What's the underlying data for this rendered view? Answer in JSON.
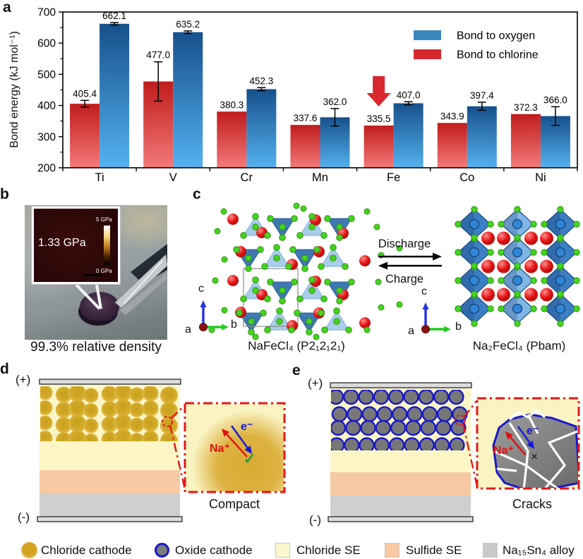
{
  "figure": {
    "panels": {
      "a": "a",
      "b": "b",
      "c": "c",
      "d": "d",
      "e": "e"
    }
  },
  "chart_data": {
    "type": "bar",
    "title": "",
    "categories": [
      "Ti",
      "V",
      "Cr",
      "Mn",
      "Fe",
      "Co",
      "Ni"
    ],
    "series": [
      {
        "name": "Bond to oxygen",
        "color": "#3b87c0",
        "values": [
          662.1,
          635.2,
          452.3,
          362.0,
          407.0,
          397.4,
          366.0
        ],
        "errors": [
          4,
          4,
          5,
          28,
          5,
          13,
          30
        ]
      },
      {
        "name": "Bond to chlorine",
        "color": "#d7282f",
        "values": [
          405.4,
          477.0,
          380.3,
          337.6,
          335.5,
          343.9,
          372.3
        ],
        "errors": [
          11,
          63,
          0,
          0,
          0,
          0,
          0
        ]
      }
    ],
    "value_labels": true,
    "ylabel": "Bond energy (kJ mol⁻¹)",
    "ylim": [
      200,
      700
    ],
    "yticks": [
      200,
      300,
      400,
      500,
      600,
      700
    ],
    "legend_position": "top-right",
    "grid": false,
    "annotation": {
      "type": "red-down-arrow",
      "category": "Fe",
      "series": "Bond to chlorine"
    }
  },
  "panel_b": {
    "modulus_label": "1.33 GPa",
    "scale_top": "5 GPa",
    "scale_bottom": "0 GPa",
    "caption": "99.3% relative density"
  },
  "panel_c": {
    "discharge": "Discharge",
    "charge": "Charge",
    "left_formula": "NaFeCl₄ (P2₁2₁2₁)",
    "right_formula": "Na₂FeCl₄ (Pbam)",
    "axis": {
      "a": "a",
      "b": "b",
      "c": "c"
    }
  },
  "panel_d": {
    "positive": "(+)",
    "negative": "(-)",
    "na_ion": "Na⁺",
    "electron": "e⁻",
    "check": "✓",
    "label": "Compact"
  },
  "panel_e": {
    "positive": "(+)",
    "negative": "(-)",
    "na_ion": "Na⁺",
    "electron": "e⁻",
    "cross": "×",
    "label": "Cracks"
  },
  "legend": {
    "items": [
      {
        "label": "Chloride cathode",
        "swatch": "gold-circle",
        "color": "#d3a322"
      },
      {
        "label": "Oxide cathode",
        "swatch": "gray-circle-blue-ring",
        "color": "#7b7b7b"
      },
      {
        "label": "Chloride SE",
        "swatch": "square",
        "color": "#fbf7d0"
      },
      {
        "label": "Sulfide SE",
        "swatch": "square",
        "color": "#f8c9a2"
      },
      {
        "label": "Na₁₅Sn₄ alloy",
        "swatch": "square",
        "color": "#c9c9c9"
      }
    ]
  },
  "colors": {
    "oxygen_bar_top": "#17508c",
    "oxygen_bar_bottom": "#54b1ef",
    "chlorine_bar_top": "#c01c1c",
    "chlorine_bar_bottom": "#f37979",
    "arrow_red": "#d8272e",
    "inset_border_red": "#e61717",
    "chloride_se": "#fcf6c6",
    "sulfide_se": "#f7c9a2",
    "alloy": "#cfcfcf",
    "na_label": "#e01010",
    "electron_label": "#1616d8"
  }
}
